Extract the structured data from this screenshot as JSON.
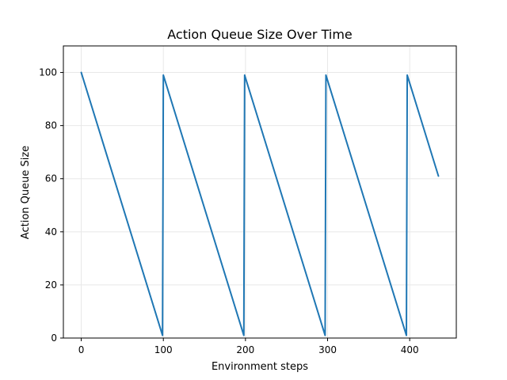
{
  "chart_data": {
    "type": "line",
    "title": "Action Queue Size Over Time",
    "xlabel": "Environment steps",
    "ylabel": "Action Queue Size",
    "xlim": [
      -21.75,
      456.75
    ],
    "ylim": [
      0,
      110
    ],
    "xticks": [
      0,
      100,
      200,
      300,
      400
    ],
    "yticks": [
      0,
      20,
      40,
      60,
      80,
      100
    ],
    "grid": true,
    "series": [
      {
        "color": "#1f77b4",
        "x": [
          0,
          99,
          100,
          198,
          199,
          297,
          298,
          396,
          397,
          435
        ],
        "y": [
          100,
          1,
          99,
          1,
          99,
          1,
          99,
          1,
          99,
          61
        ]
      }
    ]
  }
}
